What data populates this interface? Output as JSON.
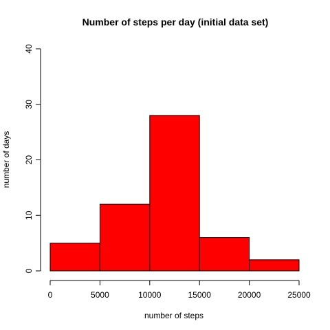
{
  "chart_data": {
    "type": "bar",
    "title": "Number of steps per day (initial data set)",
    "xlabel": "number of steps",
    "ylabel": "number of days",
    "bins": [
      {
        "from": 0,
        "to": 5000,
        "count": 5
      },
      {
        "from": 5000,
        "to": 10000,
        "count": 12
      },
      {
        "from": 10000,
        "to": 15000,
        "count": 28
      },
      {
        "from": 15000,
        "to": 20000,
        "count": 6
      },
      {
        "from": 20000,
        "to": 25000,
        "count": 2
      }
    ],
    "xlim": [
      0,
      25000
    ],
    "ylim": [
      0,
      40
    ],
    "x_ticks": [
      0,
      5000,
      10000,
      15000,
      20000,
      25000
    ],
    "y_ticks": [
      0,
      10,
      20,
      30,
      40
    ],
    "bar_color": "#ff0000",
    "grid": false
  }
}
